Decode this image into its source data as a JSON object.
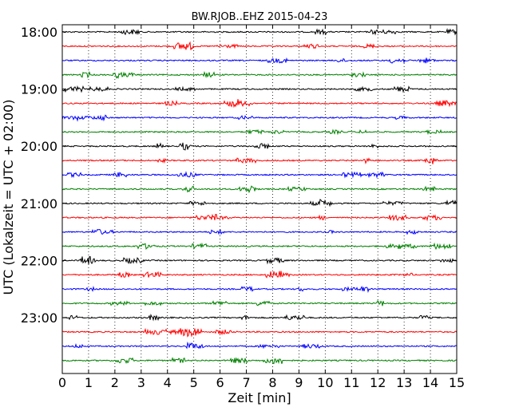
{
  "chart_data": {
    "type": "line",
    "subtype": "helicorder",
    "title": "BW.RJOB..EHZ 2015-04-23",
    "xlabel": "Zeit  [min]",
    "ylabel": "UTC (Lokalzeit = UTC + 02:00)",
    "xlim": [
      0,
      15
    ],
    "x_ticks": [
      "0",
      "1",
      "2",
      "3",
      "4",
      "5",
      "6",
      "7",
      "8",
      "9",
      "10",
      "11",
      "12",
      "13",
      "14",
      "15"
    ],
    "y_ticks": [
      "18:00",
      "19:00",
      "20:00",
      "21:00",
      "22:00",
      "23:00"
    ],
    "grid": "vertical dotted",
    "trace_colors": [
      "#000000",
      "#ff0000",
      "#0000ff",
      "#008000"
    ],
    "trace_count": 24
  }
}
